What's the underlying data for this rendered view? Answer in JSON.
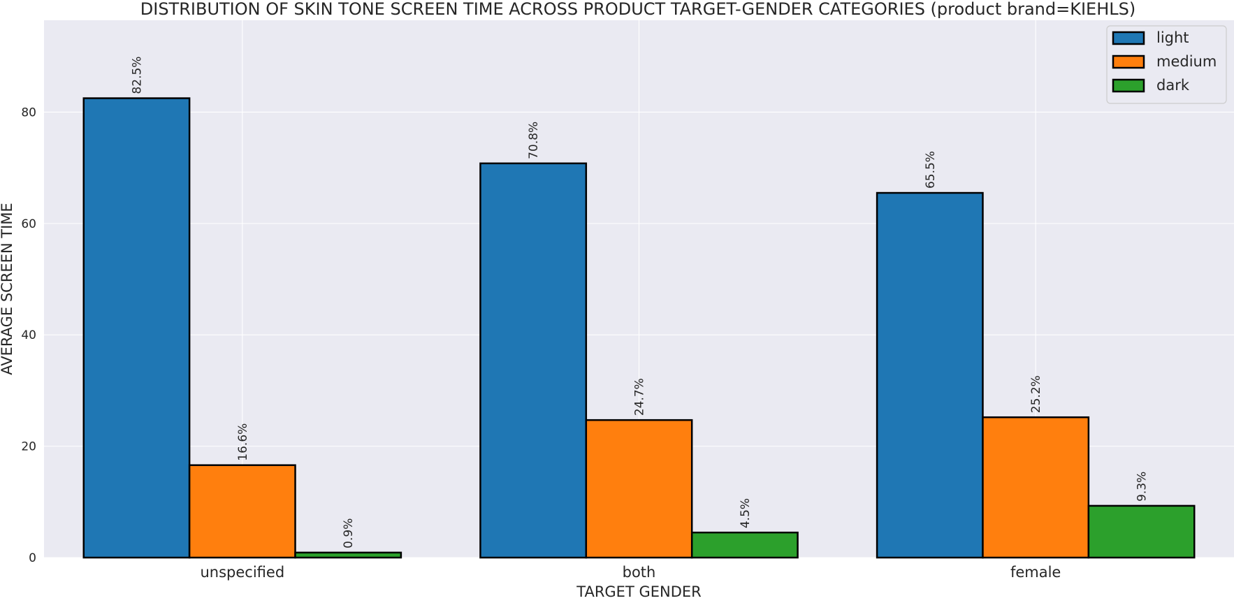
{
  "chart_data": {
    "type": "bar",
    "title": "DISTRIBUTION OF SKIN TONE SCREEN TIME ACROSS PRODUCT TARGET-GENDER CATEGORIES (product brand=KIEHLS)",
    "xlabel": "TARGET GENDER",
    "ylabel": "AVERAGE SCREEN TIME",
    "categories": [
      "unspecified",
      "both",
      "female"
    ],
    "series": [
      {
        "name": "light",
        "color": "#1f77b4",
        "values": [
          82.5,
          70.8,
          65.5
        ],
        "labels": [
          "82.5%",
          "70.8%",
          "65.5%"
        ]
      },
      {
        "name": "medium",
        "color": "#ff7f0e",
        "values": [
          16.6,
          24.7,
          25.2
        ],
        "labels": [
          "16.6%",
          "24.7%",
          "25.2%"
        ]
      },
      {
        "name": "dark",
        "color": "#2ca02c",
        "values": [
          0.9,
          4.5,
          9.3
        ],
        "labels": [
          "0.9%",
          "4.5%",
          "9.3%"
        ]
      }
    ],
    "ylim": [
      0,
      96.5
    ],
    "yticks": [
      0,
      20,
      40,
      60,
      80
    ],
    "grid": true,
    "legend_position": "top-right",
    "background_color": "#eaeaf2",
    "edge_color": "#000000"
  }
}
